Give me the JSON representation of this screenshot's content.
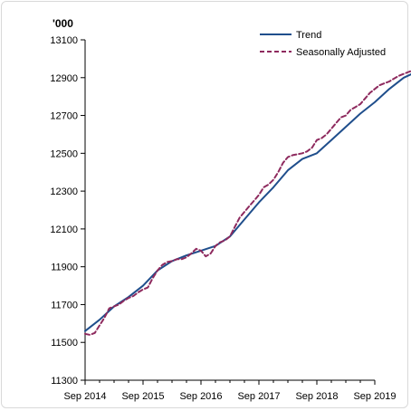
{
  "chart_data": {
    "type": "line",
    "unit_label": "'000",
    "x_tick_labels": [
      "Sep 2014",
      "Sep 2015",
      "Sep 2016",
      "Sep 2017",
      "Sep 2018",
      "Sep 2019"
    ],
    "y_ticks": [
      11300,
      11500,
      11700,
      11900,
      12100,
      12300,
      12500,
      12700,
      12900,
      13100
    ],
    "ylim": [
      11300,
      13100
    ],
    "x_range_months": [
      0,
      60
    ],
    "grid": false,
    "legend_position": "top-right",
    "series": [
      {
        "name": "Trend",
        "color": "#1f4e8c",
        "dash": "solid",
        "points": [
          [
            0,
            11560
          ],
          [
            3,
            11620
          ],
          [
            6,
            11690
          ],
          [
            9,
            11740
          ],
          [
            12,
            11800
          ],
          [
            15,
            11880
          ],
          [
            18,
            11930
          ],
          [
            21,
            11960
          ],
          [
            24,
            11985
          ],
          [
            27,
            12010
          ],
          [
            30,
            12060
          ],
          [
            33,
            12150
          ],
          [
            36,
            12240
          ],
          [
            39,
            12320
          ],
          [
            42,
            12410
          ],
          [
            45,
            12470
          ],
          [
            48,
            12500
          ],
          [
            51,
            12570
          ],
          [
            54,
            12640
          ],
          [
            57,
            12710
          ],
          [
            60,
            12770
          ],
          [
            63,
            12840
          ],
          [
            66,
            12900
          ],
          [
            69,
            12935
          ]
        ]
      },
      {
        "name": "Seasonally Adjusted",
        "color": "#8e2a5e",
        "dash": "dashed",
        "points": [
          [
            0,
            11545
          ],
          [
            1,
            11540
          ],
          [
            2,
            11550
          ],
          [
            3,
            11590
          ],
          [
            4,
            11630
          ],
          [
            5,
            11680
          ],
          [
            6,
            11690
          ],
          [
            7,
            11700
          ],
          [
            8,
            11720
          ],
          [
            9,
            11735
          ],
          [
            10,
            11745
          ],
          [
            11,
            11765
          ],
          [
            12,
            11780
          ],
          [
            13,
            11790
          ],
          [
            14,
            11840
          ],
          [
            15,
            11880
          ],
          [
            16,
            11910
          ],
          [
            17,
            11925
          ],
          [
            18,
            11930
          ],
          [
            19,
            11940
          ],
          [
            20,
            11940
          ],
          [
            21,
            11950
          ],
          [
            22,
            11970
          ],
          [
            23,
            11995
          ],
          [
            24,
            11985
          ],
          [
            25,
            11955
          ],
          [
            26,
            11970
          ],
          [
            27,
            12010
          ],
          [
            28,
            12030
          ],
          [
            29,
            12040
          ],
          [
            30,
            12060
          ],
          [
            31,
            12110
          ],
          [
            32,
            12160
          ],
          [
            33,
            12190
          ],
          [
            34,
            12220
          ],
          [
            35,
            12250
          ],
          [
            36,
            12280
          ],
          [
            37,
            12320
          ],
          [
            38,
            12335
          ],
          [
            39,
            12360
          ],
          [
            40,
            12400
          ],
          [
            41,
            12450
          ],
          [
            42,
            12480
          ],
          [
            43,
            12490
          ],
          [
            44,
            12495
          ],
          [
            45,
            12500
          ],
          [
            46,
            12510
          ],
          [
            47,
            12530
          ],
          [
            48,
            12570
          ],
          [
            49,
            12580
          ],
          [
            50,
            12600
          ],
          [
            51,
            12630
          ],
          [
            52,
            12660
          ],
          [
            53,
            12690
          ],
          [
            54,
            12700
          ],
          [
            55,
            12730
          ],
          [
            56,
            12745
          ],
          [
            57,
            12760
          ],
          [
            58,
            12790
          ],
          [
            59,
            12820
          ],
          [
            60,
            12840
          ],
          [
            61,
            12860
          ],
          [
            62,
            12870
          ],
          [
            63,
            12880
          ],
          [
            64,
            12895
          ],
          [
            65,
            12910
          ],
          [
            66,
            12920
          ],
          [
            67,
            12930
          ],
          [
            68,
            12940
          ],
          [
            69,
            12945
          ]
        ]
      }
    ]
  }
}
